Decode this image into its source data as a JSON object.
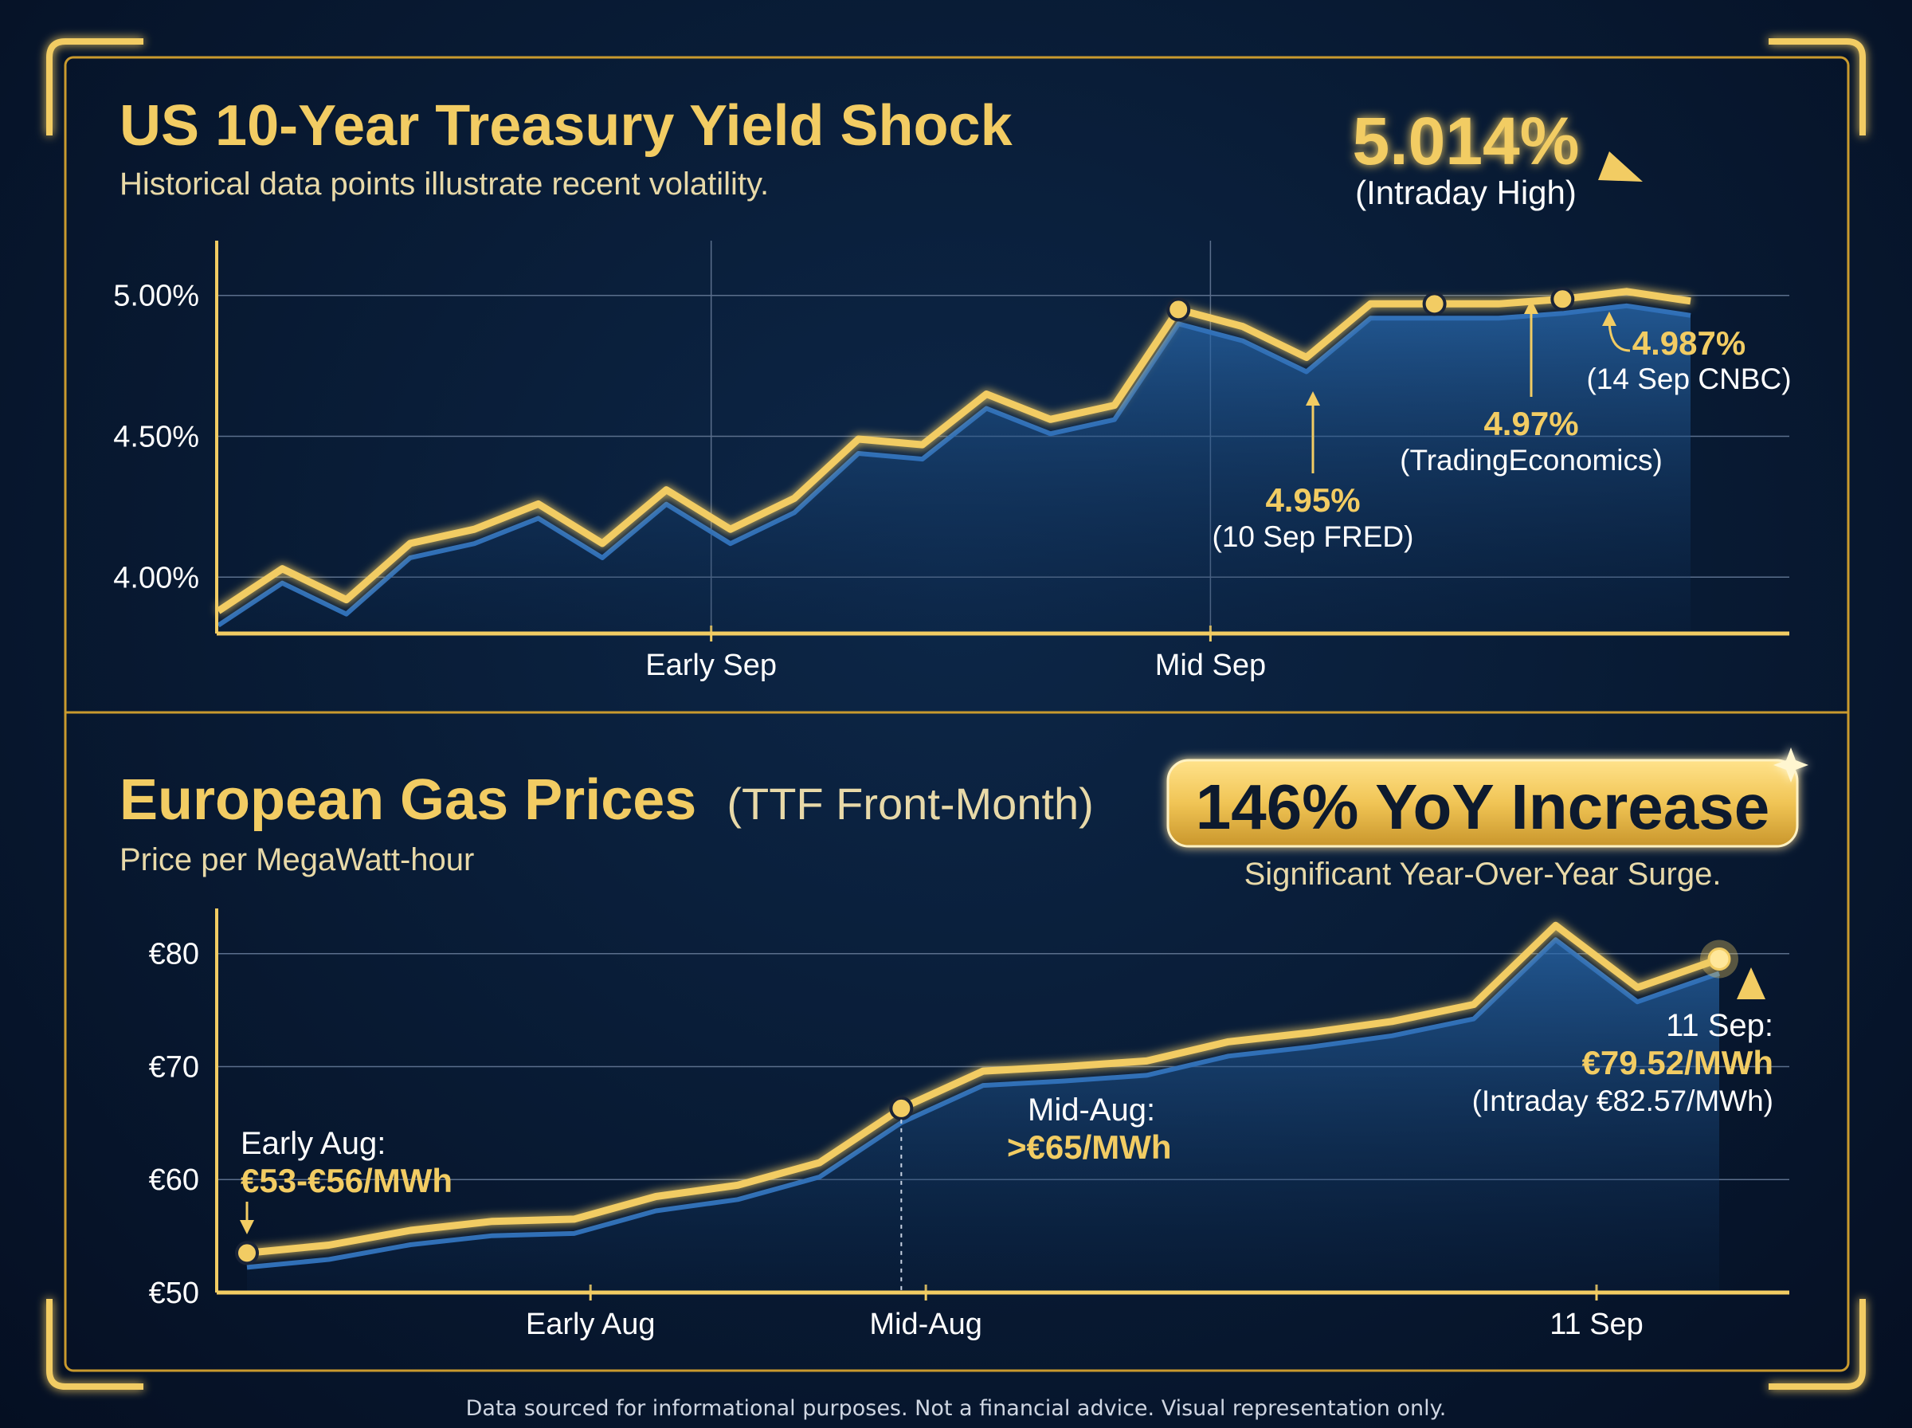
{
  "colors": {
    "gold": "#f2cc63",
    "gold_dark": "#c99a2e",
    "blue_line": "#2f6fb8",
    "background": "#081a33",
    "text": "#ffffff"
  },
  "footer": "Data sourced for informational purposes. Not a financial advice. Visual representation only.",
  "chart_data": [
    {
      "type": "line",
      "title": "US 10-Year Treasury Yield Shock",
      "subtitle": "Historical data points illustrate recent volatility.",
      "xlabel": "",
      "ylabel": "",
      "y_ticks": [
        "4.00%",
        "4.50%",
        "5.00%"
      ],
      "ylim": [
        3.8,
        5.2
      ],
      "x_ticks": [
        "Early Sep",
        "Mid Sep"
      ],
      "grid": true,
      "values": [
        3.88,
        4.03,
        3.92,
        4.12,
        4.17,
        4.26,
        4.12,
        4.31,
        4.17,
        4.28,
        4.49,
        4.47,
        4.65,
        4.56,
        4.61,
        4.95,
        4.89,
        4.78,
        4.97,
        4.97,
        4.97,
        4.987,
        5.014,
        4.98
      ],
      "callouts": [
        {
          "value": "4.95%",
          "note": "(10 Sep FRED)"
        },
        {
          "value": "4.97%",
          "note": "(TradingEconomics)"
        },
        {
          "value": "4.987%",
          "note": "(14 Sep CNBC)"
        },
        {
          "value": "5.014%",
          "note": "(Intraday High)"
        }
      ]
    },
    {
      "type": "line",
      "title": "European Gas Prices",
      "title_suffix": "(TTF Front-Month)",
      "subtitle": "Price per MegaWatt-hour",
      "xlabel": "",
      "ylabel": "",
      "y_ticks": [
        "€50",
        "€60",
        "€70",
        "€80"
      ],
      "ylim": [
        50,
        84
      ],
      "x_ticks": [
        "Early Aug",
        "Mid-Aug",
        "11 Sep"
      ],
      "grid": true,
      "values": [
        53.5,
        54.2,
        55.5,
        56.3,
        56.5,
        58.5,
        59.5,
        61.5,
        66.3,
        69.6,
        70.0,
        70.5,
        72.2,
        73.0,
        74.0,
        75.5,
        82.5,
        77.0,
        79.52
      ],
      "callouts": [
        {
          "label": "Early Aug:",
          "value": "€53-€56/MWh"
        },
        {
          "label": "Mid-Aug:",
          "value": ">€65/MWh"
        },
        {
          "label": "11 Sep:",
          "value": "€79.52/MWh",
          "note": "(Intraday €82.57/MWh)"
        }
      ],
      "badge": {
        "text": "146% YoY Increase",
        "caption": "Significant Year-Over-Year Surge."
      }
    }
  ]
}
